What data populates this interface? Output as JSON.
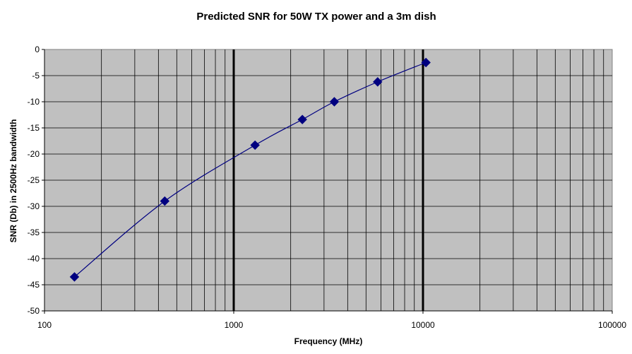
{
  "chart_data": {
    "type": "scatter",
    "title": "Predicted SNR for 50W TX power and a 3m dish",
    "xlabel": "Frequency (MHz)",
    "ylabel": "SNR (Db) in 2500Hz bandwidth",
    "x_scale": "log",
    "xlim": [
      100,
      100000
    ],
    "ylim": [
      -50,
      0
    ],
    "x_ticks": [
      "100",
      "1000",
      "10000",
      "100000"
    ],
    "y_ticks": [
      "0",
      "-5",
      "-10",
      "-15",
      "-20",
      "-25",
      "-30",
      "-35",
      "-40",
      "-45",
      "-50"
    ],
    "grid": true,
    "legend": "none",
    "series": [
      {
        "x": [
          144,
          432,
          1296,
          2304,
          3400,
          5760,
          10368
        ],
        "y": [
          -43.5,
          -29,
          -18.3,
          -13.4,
          -10,
          -6.2,
          -2.5
        ],
        "marker": "diamond",
        "line": "smooth",
        "color": "#000080"
      }
    ],
    "colors": {
      "plot_background": "#c0c0c0",
      "grid_minor": "#000000",
      "grid_major": "#000000"
    }
  }
}
